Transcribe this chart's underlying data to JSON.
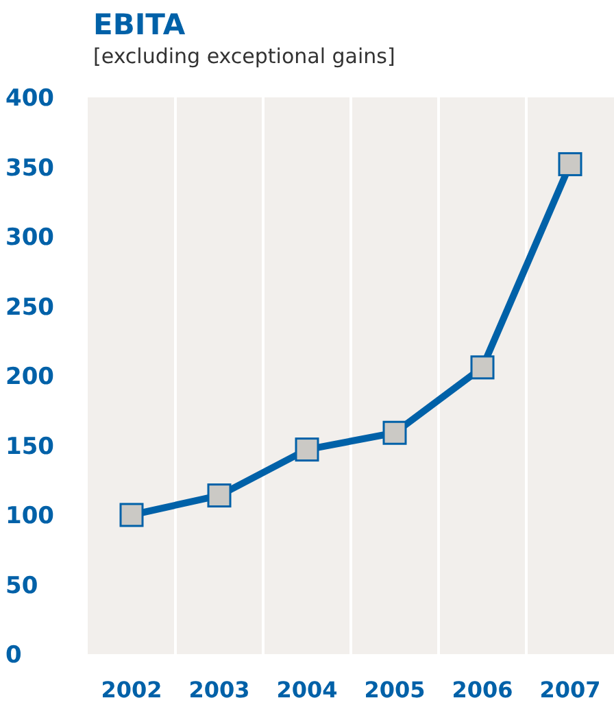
{
  "chart_data": {
    "type": "line",
    "title": "EBITA",
    "subtitle": "[excluding exceptional gains]",
    "categories": [
      "2002",
      "2003",
      "2004",
      "2005",
      "2006",
      "2007"
    ],
    "series": [
      {
        "color": "#0061a8",
        "values": [
          100,
          114,
          147,
          159,
          206,
          352
        ]
      }
    ],
    "ylim": [
      0,
      400
    ],
    "yticks": [
      0,
      50,
      100,
      150,
      200,
      250,
      300,
      350,
      400
    ],
    "grid": "x",
    "marker": "square",
    "line_style": "solid"
  }
}
